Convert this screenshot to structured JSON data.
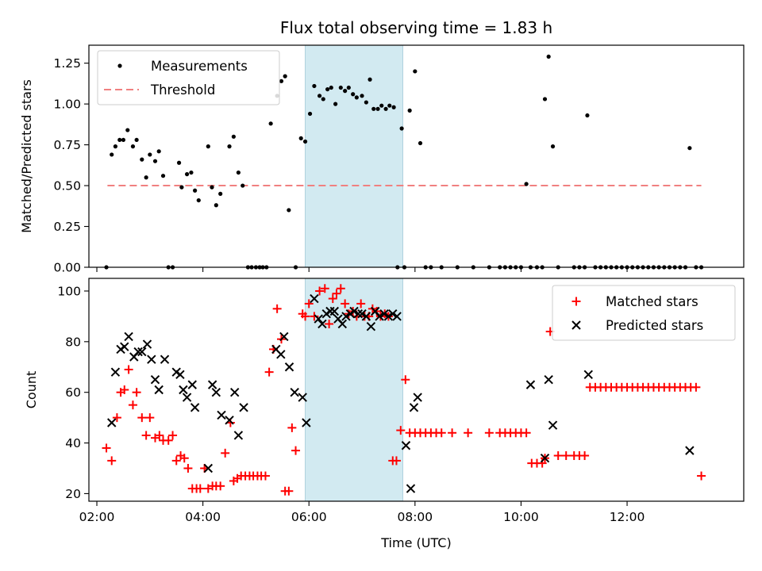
{
  "chart_data": [
    {
      "type": "scatter",
      "title": "Flux total observing time = 1.83 h",
      "xlabel": "",
      "ylabel": "Matched/Predicted stars",
      "xlim": [
        1.85,
        14.2
      ],
      "ylim": [
        0.0,
        1.36
      ],
      "yticks": [
        0.0,
        0.25,
        0.5,
        0.75,
        1.0,
        1.25
      ],
      "ytick_labels": [
        "0.00",
        "0.25",
        "0.50",
        "0.75",
        "1.00",
        "1.25"
      ],
      "xticks": [
        2,
        4,
        6,
        8,
        10,
        12
      ],
      "highlight_span": [
        5.93,
        7.77
      ],
      "highlight_color": "#add8e6",
      "legend": [
        "Measurements",
        "Threshold"
      ],
      "legend_position": "top-left",
      "threshold": {
        "value": 0.5,
        "x": [
          2.2,
          13.4
        ],
        "color": "#f08080"
      },
      "measurements": {
        "x": [
          2.18,
          2.28,
          2.35,
          2.43,
          2.5,
          2.58,
          2.68,
          2.75,
          2.85,
          2.93,
          3.0,
          3.1,
          3.17,
          3.25,
          3.35,
          3.43,
          3.55,
          3.6,
          3.7,
          3.78,
          3.85,
          3.92,
          4.1,
          4.17,
          4.25,
          4.33,
          4.5,
          4.58,
          4.67,
          4.75,
          4.85,
          4.92,
          5.0,
          5.07,
          5.13,
          5.2,
          5.28,
          5.4,
          5.48,
          5.55,
          5.62,
          5.75,
          5.85,
          5.93,
          6.02,
          6.1,
          6.2,
          6.27,
          6.35,
          6.42,
          6.5,
          6.6,
          6.68,
          6.75,
          6.83,
          6.9,
          7.0,
          7.08,
          7.15,
          7.22,
          7.3,
          7.37,
          7.45,
          7.52,
          7.6,
          7.67,
          7.75,
          7.8,
          7.9,
          8.0,
          8.1,
          8.2,
          8.3,
          8.5,
          8.8,
          9.1,
          9.4,
          9.6,
          9.7,
          9.8,
          9.9,
          10.0,
          10.1,
          10.18,
          10.3,
          10.4,
          10.45,
          10.52,
          10.6,
          10.7,
          11.0,
          11.1,
          11.2,
          11.25,
          11.4,
          11.5,
          11.6,
          11.7,
          11.8,
          11.9,
          12.0,
          12.1,
          12.2,
          12.3,
          12.4,
          12.5,
          12.6,
          12.7,
          12.8,
          12.9,
          13.0,
          13.1,
          13.18,
          13.3,
          13.4
        ],
        "y": [
          0.0,
          0.69,
          0.74,
          0.78,
          0.78,
          0.84,
          0.74,
          0.78,
          0.66,
          0.55,
          0.69,
          0.65,
          0.71,
          0.56,
          0.0,
          0.0,
          0.64,
          0.49,
          0.57,
          0.58,
          0.47,
          0.41,
          0.74,
          0.49,
          0.38,
          0.45,
          0.74,
          0.8,
          0.58,
          0.5,
          0.0,
          0.0,
          0.0,
          0.0,
          0.0,
          0.0,
          0.88,
          1.05,
          1.14,
          1.17,
          0.35,
          0.0,
          0.79,
          0.77,
          0.94,
          1.11,
          1.05,
          1.03,
          1.09,
          1.1,
          1.0,
          1.1,
          1.08,
          1.1,
          1.06,
          1.04,
          1.05,
          1.01,
          1.15,
          0.97,
          0.97,
          0.99,
          0.97,
          0.99,
          0.98,
          0.0,
          0.85,
          0.0,
          0.96,
          1.2,
          0.76,
          0.0,
          0.0,
          0.0,
          0.0,
          0.0,
          0.0,
          0.0,
          0.0,
          0.0,
          0.0,
          0.0,
          0.51,
          0.0,
          0.0,
          0.0,
          1.03,
          1.29,
          0.74,
          0.0,
          0.0,
          0.0,
          0.0,
          0.93,
          0.0,
          0.0,
          0.0,
          0.0,
          0.0,
          0.0,
          0.0,
          0.0,
          0.0,
          0.0,
          0.0,
          0.0,
          0.0,
          0.0,
          0.0,
          0.0,
          0.0,
          0.0,
          0.73,
          0.0,
          0.0
        ]
      }
    },
    {
      "type": "scatter",
      "title": "",
      "xlabel": "Time (UTC)",
      "ylabel": "Count",
      "xlim": [
        1.85,
        14.2
      ],
      "ylim": [
        17,
        105
      ],
      "yticks": [
        20,
        40,
        60,
        80,
        100
      ],
      "ytick_labels": [
        "20",
        "40",
        "60",
        "80",
        "100"
      ],
      "xticks": [
        2,
        4,
        6,
        8,
        10,
        12
      ],
      "xtick_labels": [
        "02:00",
        "04:00",
        "06:00",
        "08:00",
        "10:00",
        "12:00"
      ],
      "highlight_span": [
        5.93,
        7.77
      ],
      "highlight_color": "#add8e6",
      "legend": [
        "Matched stars",
        "Predicted stars"
      ],
      "legend_position": "top-right",
      "series": [
        {
          "name": "Matched stars",
          "marker": "+",
          "color": "#ff0000",
          "x": [
            2.18,
            2.28,
            2.38,
            2.45,
            2.52,
            2.6,
            2.68,
            2.75,
            2.85,
            2.93,
            3.0,
            3.1,
            3.18,
            3.25,
            3.35,
            3.43,
            3.5,
            3.58,
            3.65,
            3.72,
            3.8,
            3.88,
            3.95,
            4.03,
            4.1,
            4.18,
            4.25,
            4.33,
            4.42,
            4.52,
            4.58,
            4.65,
            4.72,
            4.8,
            4.88,
            4.95,
            5.03,
            5.1,
            5.18,
            5.25,
            5.33,
            5.4,
            5.48,
            5.55,
            5.62,
            5.68,
            5.75,
            5.88,
            5.93,
            6.0,
            6.1,
            6.2,
            6.3,
            6.38,
            6.45,
            6.52,
            6.6,
            6.68,
            6.75,
            6.83,
            6.9,
            6.98,
            7.05,
            7.13,
            7.2,
            7.28,
            7.35,
            7.43,
            7.5,
            7.58,
            7.65,
            7.73,
            7.82,
            7.9,
            8.0,
            8.1,
            8.2,
            8.3,
            8.4,
            8.5,
            8.7,
            9.0,
            9.4,
            9.6,
            9.7,
            9.8,
            9.9,
            10.0,
            10.1,
            10.2,
            10.3,
            10.4,
            10.45,
            10.55,
            10.7,
            10.85,
            11.0,
            11.1,
            11.2,
            11.3,
            11.4,
            11.5,
            11.6,
            11.7,
            11.8,
            11.9,
            12.0,
            12.1,
            12.2,
            12.3,
            12.4,
            12.5,
            12.6,
            12.7,
            12.8,
            12.9,
            13.0,
            13.1,
            13.2,
            13.3,
            13.4
          ],
          "y": [
            38,
            33,
            50,
            60,
            61,
            69,
            55,
            60,
            50,
            43,
            50,
            42,
            43,
            41,
            41,
            43,
            33,
            35,
            34,
            30,
            22,
            22,
            22,
            30,
            22,
            23,
            23,
            23,
            36,
            48,
            25,
            26,
            27,
            27,
            27,
            27,
            27,
            27,
            27,
            68,
            77,
            93,
            81,
            21,
            21,
            46,
            37,
            91,
            90,
            95,
            90,
            100,
            101,
            87,
            97,
            99,
            101,
            95,
            91,
            92,
            90,
            95,
            90,
            90,
            93,
            92,
            90,
            91,
            90,
            33,
            33,
            45,
            65,
            44,
            44,
            44,
            44,
            44,
            44,
            44,
            44,
            44,
            44,
            44,
            44,
            44,
            44,
            44,
            44,
            32,
            32,
            32,
            34,
            84,
            35,
            35,
            35,
            35,
            35,
            62,
            62,
            62,
            62,
            62,
            62,
            62,
            62,
            62,
            62,
            62,
            62,
            62,
            62,
            62,
            62,
            62,
            62,
            62,
            62,
            62,
            27
          ]
        },
        {
          "name": "Predicted stars",
          "marker": "x",
          "color": "#000000",
          "x": [
            2.28,
            2.35,
            2.45,
            2.52,
            2.6,
            2.7,
            2.78,
            2.85,
            2.95,
            3.03,
            3.1,
            3.17,
            3.28,
            3.5,
            3.57,
            3.63,
            3.7,
            3.8,
            3.85,
            4.1,
            4.18,
            4.25,
            4.35,
            4.5,
            4.6,
            4.67,
            4.77,
            5.38,
            5.47,
            5.53,
            5.63,
            5.73,
            5.88,
            5.95,
            6.1,
            6.18,
            6.25,
            6.33,
            6.4,
            6.48,
            6.55,
            6.63,
            6.7,
            6.78,
            6.85,
            6.93,
            7.0,
            7.08,
            7.17,
            7.25,
            7.33,
            7.42,
            7.5,
            7.58,
            7.66,
            7.83,
            7.92,
            7.98,
            8.05,
            10.18,
            10.45,
            10.52,
            10.6,
            11.27,
            13.18
          ],
          "y": [
            48,
            68,
            77,
            78,
            82,
            74,
            76,
            76,
            79,
            73,
            65,
            61,
            73,
            68,
            67,
            61,
            58,
            63,
            54,
            30,
            63,
            60,
            51,
            49,
            60,
            43,
            54,
            77,
            75,
            82,
            70,
            60,
            58,
            48,
            97,
            89,
            87,
            91,
            92,
            92,
            89,
            87,
            90,
            91,
            92,
            91,
            91,
            90,
            86,
            92,
            90,
            91,
            90,
            91,
            90,
            39,
            22,
            54,
            58,
            63,
            34,
            65,
            47,
            67,
            37
          ]
        }
      ]
    }
  ]
}
